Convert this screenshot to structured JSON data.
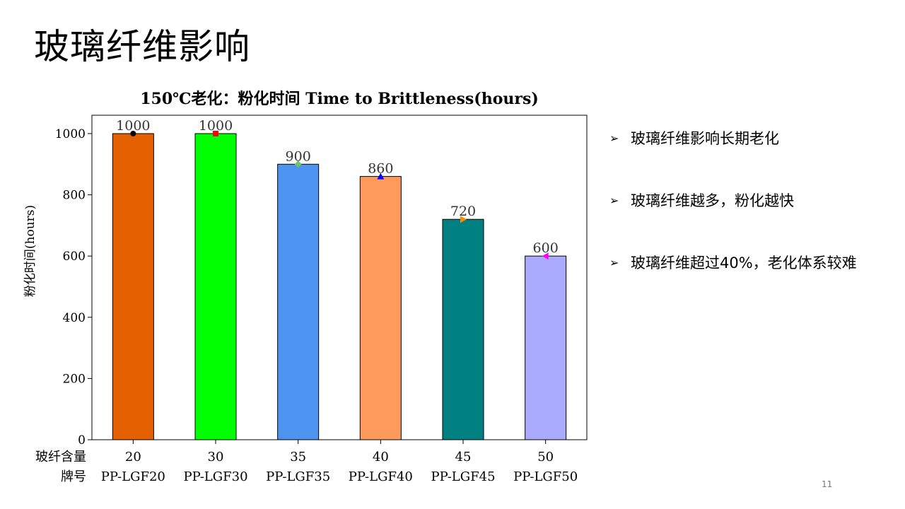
{
  "slide": {
    "title": "玻璃纤维影响",
    "page_number": "11",
    "bullets": [
      "玻璃纤维影响长期老化",
      "玻璃纤维越多，粉化越快",
      "玻璃纤维超过40%，老化体系较难"
    ]
  },
  "chart_data": {
    "type": "bar",
    "title": "150℃老化：粉化时间 Time to Brittleness(hours)",
    "ylabel": "粉化时间(hours)",
    "ylim": [
      0,
      1060
    ],
    "yticks": [
      0,
      200,
      400,
      600,
      800,
      1000
    ],
    "row_labels": [
      "玻纤含量",
      "牌号"
    ],
    "categories": [
      "20",
      "30",
      "35",
      "40",
      "45",
      "50"
    ],
    "grades": [
      "PP-LGF20",
      "PP-LGF30",
      "PP-LGF35",
      "PP-LGF40",
      "PP-LGF45",
      "PP-LGF50"
    ],
    "values": [
      1000,
      1000,
      900,
      860,
      720,
      600
    ],
    "data_labels": [
      "1000",
      "1000",
      "900",
      "860",
      "720",
      "600"
    ],
    "bar_colors": [
      "#E46000",
      "#00FF00",
      "#4D94F0",
      "#FF9A5C",
      "#008080",
      "#AAAAFF"
    ],
    "markers": [
      {
        "shape": "circle",
        "color": "#000000"
      },
      {
        "shape": "square",
        "color": "#FF0000"
      },
      {
        "shape": "diamond",
        "color": "#6CC46C"
      },
      {
        "shape": "triangle-up",
        "color": "#0000FF"
      },
      {
        "shape": "triangle-right",
        "color": "#FF8C00"
      },
      {
        "shape": "triangle-left",
        "color": "#FF00FF"
      }
    ],
    "grid": false
  }
}
